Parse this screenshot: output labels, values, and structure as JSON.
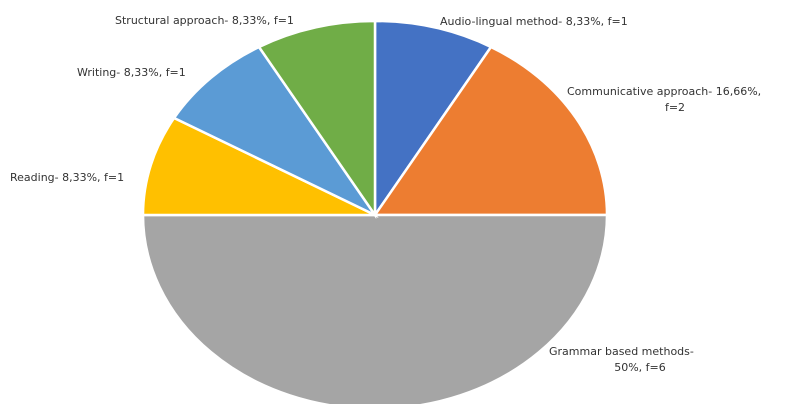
{
  "chart_data": {
    "type": "pie",
    "start": "top-clockwise",
    "slices": [
      {
        "name": "Audio-lingual method",
        "value": 8.33,
        "f": 1,
        "color": "#4472C4",
        "label_lines": [
          "Audio-lingual method- 8,33%, f=1"
        ]
      },
      {
        "name": "Communicative approach",
        "value": 16.66,
        "f": 2,
        "color": "#ED7D31",
        "label_lines": [
          "Communicative approach- 16,66%,",
          "f=2"
        ]
      },
      {
        "name": "Grammar based methods",
        "value": 50,
        "f": 6,
        "color": "#A5A5A5",
        "label_lines": [
          "Grammar based methods-",
          "50%, f=6"
        ]
      },
      {
        "name": "Reading",
        "value": 8.33,
        "f": 1,
        "color": "#FFC000",
        "label_lines": [
          "Reading- 8,33%, f=1"
        ]
      },
      {
        "name": "Writing",
        "value": 8.33,
        "f": 1,
        "color": "#5B9BD5",
        "label_lines": [
          "Writing- 8,33%, f=1"
        ]
      },
      {
        "name": "Structural approach",
        "value": 8.33,
        "f": 1,
        "color": "#70AD47",
        "label_lines": [
          "Structural approach- 8,33%, f=1"
        ]
      }
    ]
  }
}
